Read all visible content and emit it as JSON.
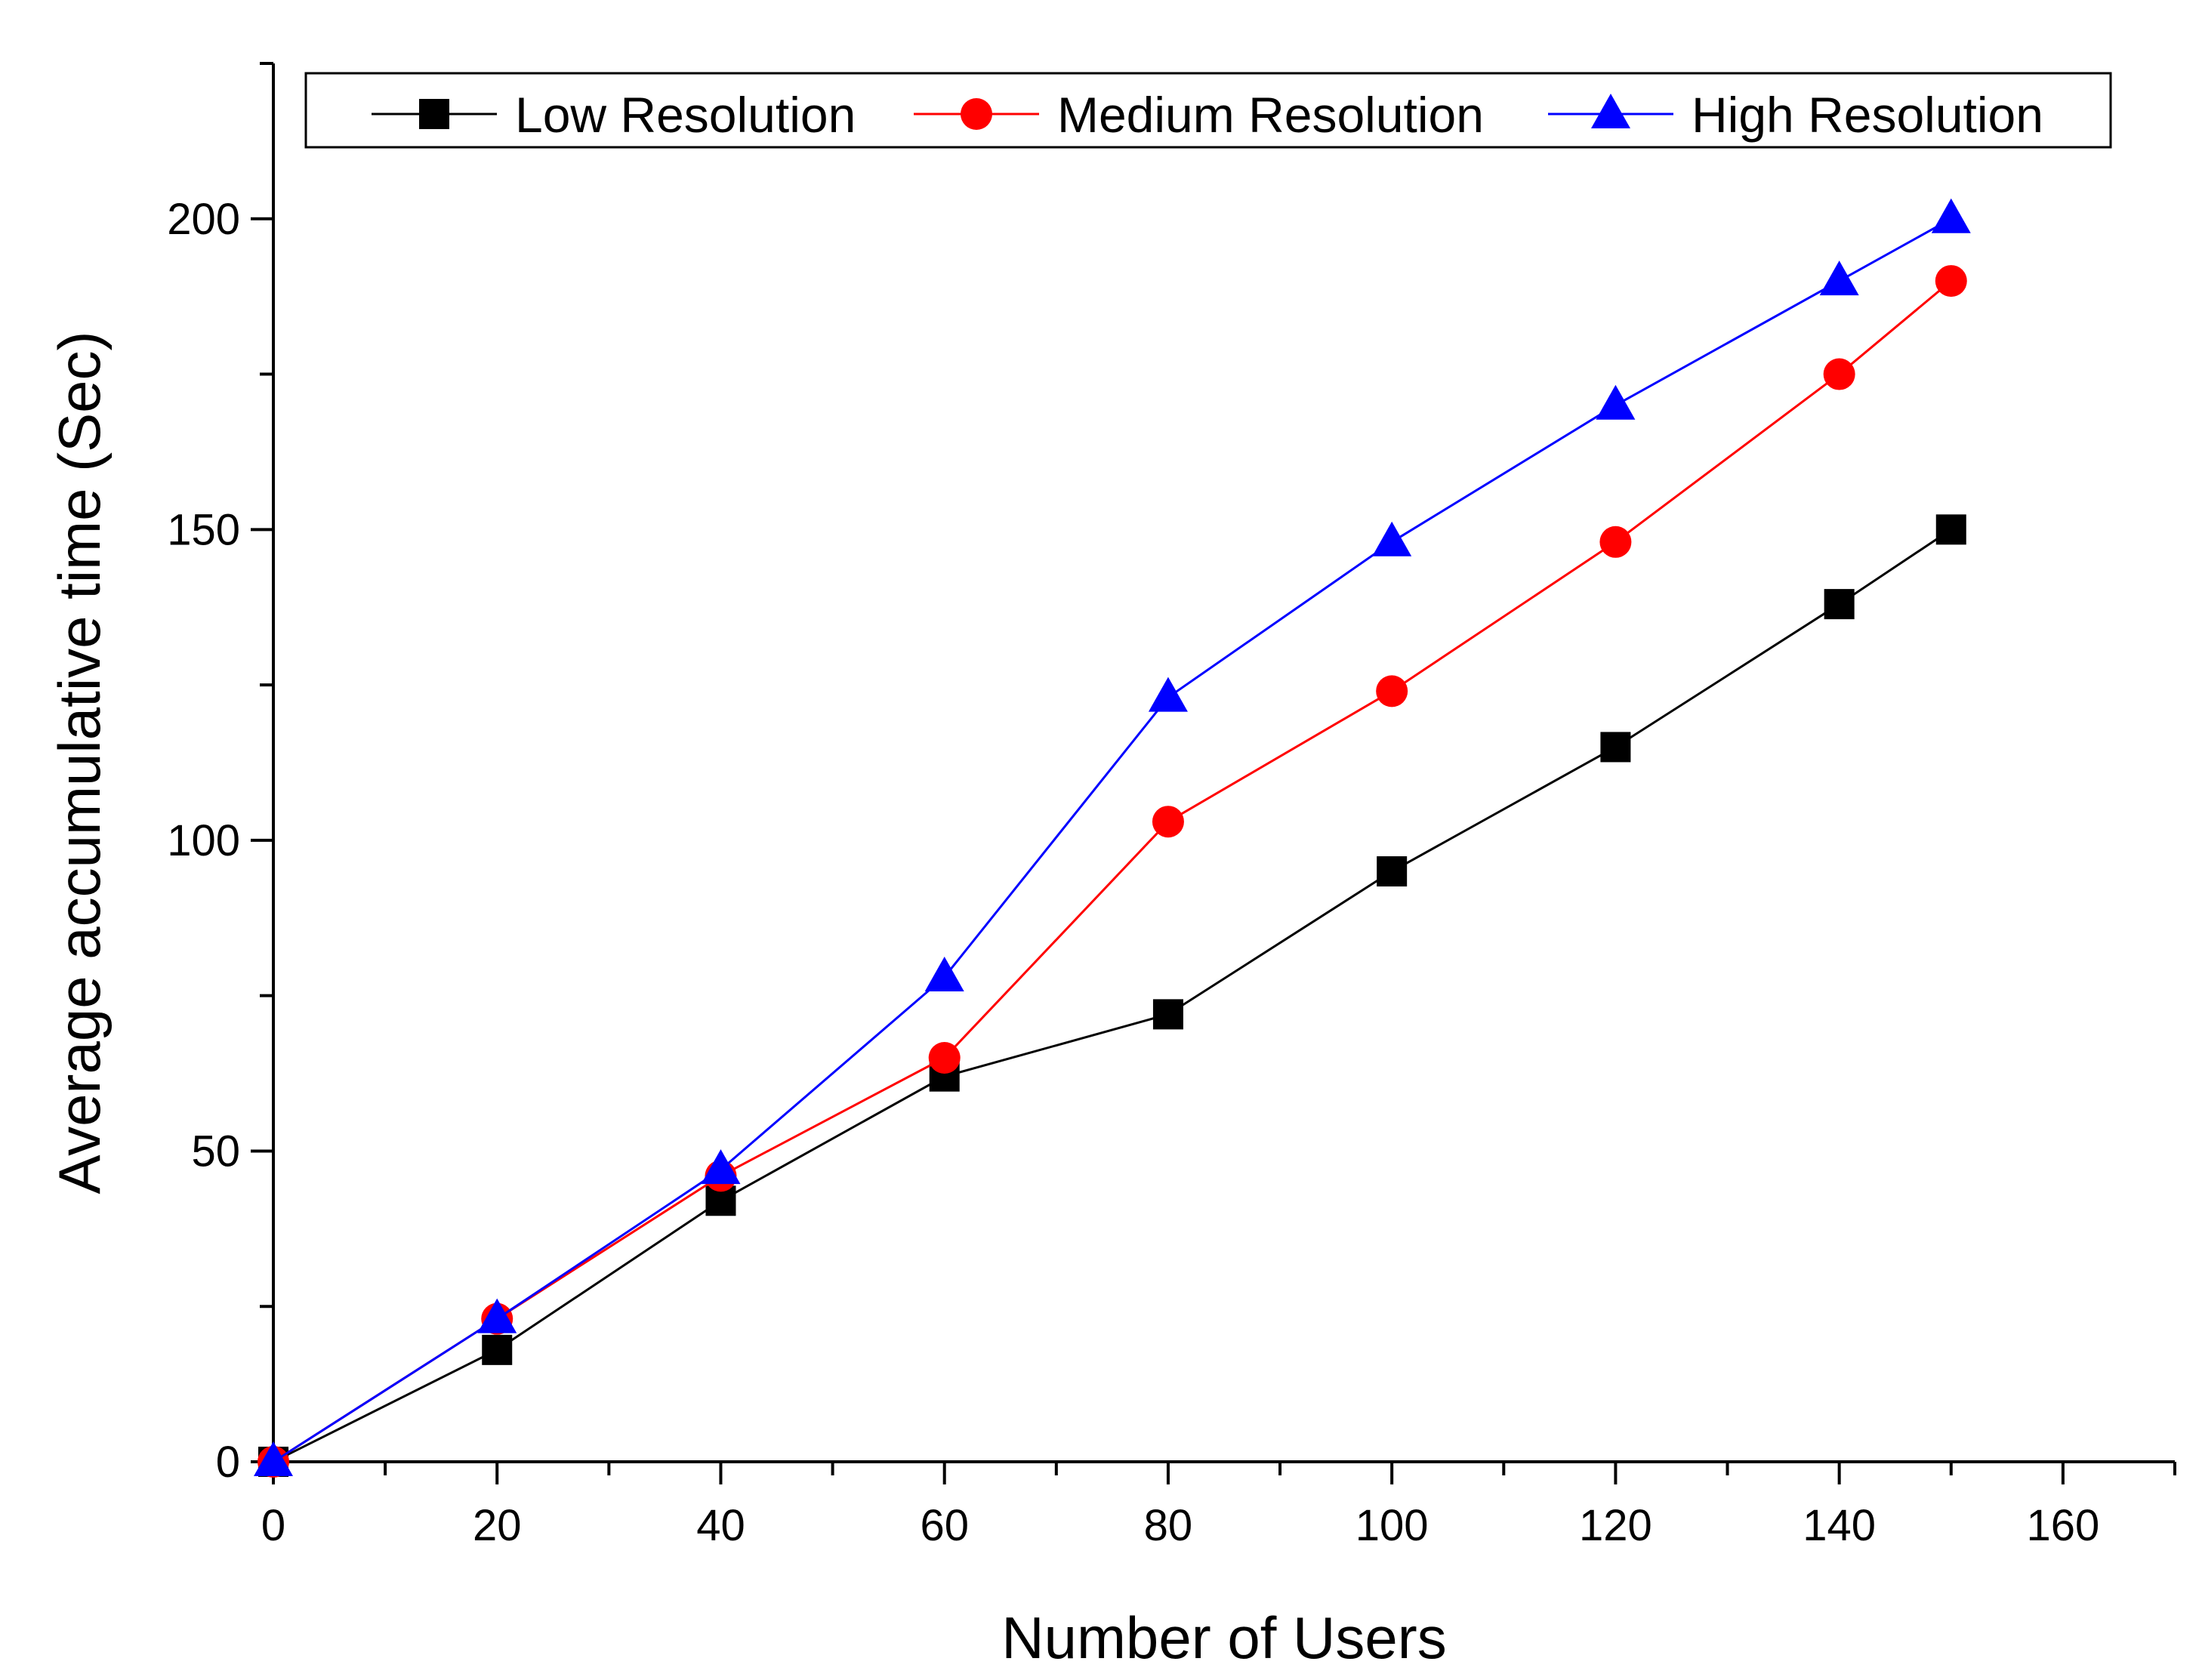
{
  "chart_data": {
    "type": "line",
    "title": "",
    "xlabel": "Number of Users",
    "ylabel": "Average accumulative time (Sec)",
    "xlim": [
      0,
      170
    ],
    "ylim": [
      0,
      225
    ],
    "x_ticks": [
      0,
      20,
      40,
      60,
      80,
      100,
      120,
      140,
      160
    ],
    "y_ticks": [
      0,
      50,
      100,
      150,
      200
    ],
    "grid": false,
    "legend": "top",
    "x": [
      0,
      20,
      40,
      60,
      80,
      100,
      120,
      140,
      150
    ],
    "series": [
      {
        "name": "Low Resolution",
        "marker": "square",
        "color": "#000000",
        "values": [
          0,
          18,
          42,
          62,
          72,
          95,
          115,
          138,
          150
        ]
      },
      {
        "name": "Medium Resolution",
        "marker": "circle",
        "color": "#ff0000",
        "values": [
          0,
          23,
          46,
          65,
          103,
          124,
          148,
          175,
          190
        ]
      },
      {
        "name": "High Resolution",
        "marker": "triangle",
        "color": "#0000ff",
        "values": [
          0,
          23,
          47,
          78,
          123,
          148,
          170,
          190,
          200
        ]
      }
    ]
  }
}
